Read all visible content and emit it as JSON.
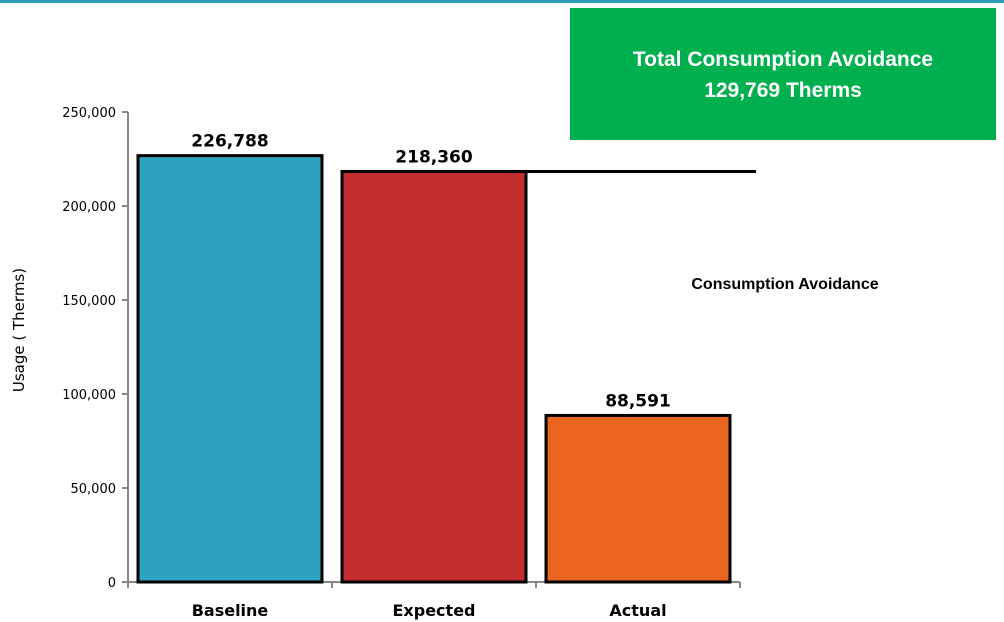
{
  "callout": {
    "title": "Total Consumption Avoidance",
    "value": "129,769",
    "unit": "Therms"
  },
  "annotation": "Consumption Avoidance",
  "colors": {
    "baseline": "#2ea3c0",
    "expected": "#c42e2e",
    "actual": "#e8641f",
    "callout": "#00b04f",
    "topbar": "#2e9dbb"
  },
  "chart_data": {
    "type": "bar",
    "categories": [
      "Baseline",
      "Expected",
      "Actual"
    ],
    "values": [
      226788,
      218360,
      88591
    ],
    "data_labels": [
      "226,788",
      "218,360",
      "88,591"
    ],
    "ylabel": "Usage ( Therms)",
    "ylim": [
      0,
      250000
    ],
    "yticks": [
      0,
      50000,
      100000,
      150000,
      200000,
      250000
    ],
    "ytick_labels": [
      "0",
      "50,000",
      "100,000",
      "150,000",
      "200,000",
      "250,000"
    ],
    "reference_line": 218360,
    "grid": false,
    "legend": "none"
  }
}
